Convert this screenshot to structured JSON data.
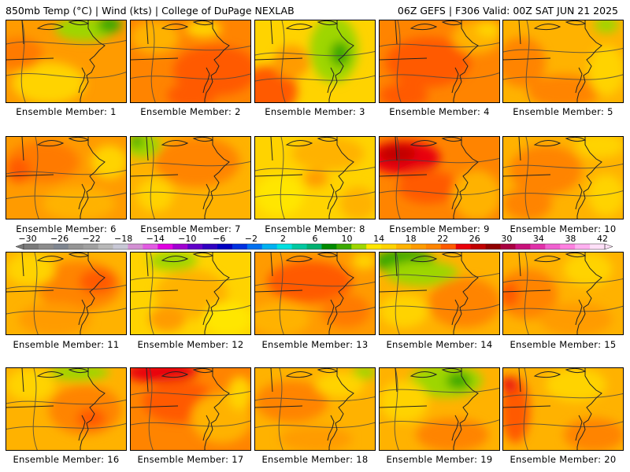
{
  "header": {
    "left": "850mb Temp (°C) | Wind (kts) | College of DuPage NEXLAB",
    "right": "06Z GEFS | F306 Valid: 00Z SAT JUN 21 2025"
  },
  "member_label_prefix": "Ensemble Member: ",
  "members": [
    {
      "id": "1",
      "base": "#ff9b00",
      "blobs": [
        [
          "#ffd300",
          0.35,
          0.75,
          0.3,
          0.25
        ],
        [
          "#9ed600",
          0.65,
          0.1,
          0.25,
          0.15
        ],
        [
          "#3aa800",
          0.85,
          0.05,
          0.1,
          0.1
        ],
        [
          "#ff7a00",
          0.1,
          0.4,
          0.2,
          0.2
        ]
      ]
    },
    {
      "id": "2",
      "base": "#ff8400",
      "blobs": [
        [
          "#ff5a00",
          0.7,
          0.6,
          0.35,
          0.3
        ],
        [
          "#ffb200",
          0.2,
          0.2,
          0.2,
          0.2
        ],
        [
          "#ffd300",
          0.6,
          0.1,
          0.15,
          0.1
        ],
        [
          "#ff5a00",
          0.5,
          0.9,
          0.2,
          0.15
        ]
      ]
    },
    {
      "id": "3",
      "base": "#ffd300",
      "blobs": [
        [
          "#ff5a00",
          0.1,
          0.85,
          0.25,
          0.3
        ],
        [
          "#9ed600",
          0.65,
          0.35,
          0.2,
          0.4
        ],
        [
          "#3aa800",
          0.7,
          0.4,
          0.08,
          0.15
        ],
        [
          "#ff9b00",
          0.3,
          0.5,
          0.15,
          0.2
        ]
      ]
    },
    {
      "id": "4",
      "base": "#ff8400",
      "blobs": [
        [
          "#ff5a00",
          0.4,
          0.5,
          0.35,
          0.3
        ],
        [
          "#ffb200",
          0.8,
          0.2,
          0.2,
          0.2
        ],
        [
          "#ffd300",
          0.9,
          0.1,
          0.1,
          0.1
        ],
        [
          "#ff5a00",
          0.2,
          0.9,
          0.2,
          0.15
        ]
      ]
    },
    {
      "id": "5",
      "base": "#ffb200",
      "blobs": [
        [
          "#ff8400",
          0.15,
          0.5,
          0.2,
          0.3
        ],
        [
          "#ff8400",
          0.5,
          0.85,
          0.3,
          0.2
        ],
        [
          "#ffd300",
          0.85,
          0.6,
          0.15,
          0.3
        ],
        [
          "#9ed600",
          0.85,
          0.05,
          0.1,
          0.1
        ]
      ]
    },
    {
      "id": "6",
      "base": "#ff9b00",
      "blobs": [
        [
          "#ff7a00",
          0.3,
          0.3,
          0.3,
          0.25
        ],
        [
          "#ffb200",
          0.6,
          0.8,
          0.3,
          0.2
        ],
        [
          "#ff5a00",
          0.1,
          0.4,
          0.1,
          0.15
        ],
        [
          "#ffd300",
          0.85,
          0.3,
          0.15,
          0.2
        ]
      ]
    },
    {
      "id": "7",
      "base": "#ffb200",
      "blobs": [
        [
          "#9ed600",
          0.1,
          0.1,
          0.15,
          0.15
        ],
        [
          "#3aa800",
          0.05,
          0.05,
          0.05,
          0.08
        ],
        [
          "#ff8400",
          0.55,
          0.3,
          0.35,
          0.3
        ],
        [
          "#ffd300",
          0.2,
          0.7,
          0.15,
          0.2
        ]
      ]
    },
    {
      "id": "8",
      "base": "#ffd300",
      "blobs": [
        [
          "#ffb200",
          0.6,
          0.2,
          0.3,
          0.2
        ],
        [
          "#ffe600",
          0.2,
          0.7,
          0.2,
          0.25
        ],
        [
          "#ffb200",
          0.85,
          0.8,
          0.15,
          0.2
        ],
        [
          "#ff9b00",
          0.5,
          0.5,
          0.1,
          0.1
        ]
      ]
    },
    {
      "id": "9",
      "base": "#ff8400",
      "blobs": [
        [
          "#e8000a",
          0.2,
          0.25,
          0.3,
          0.2
        ],
        [
          "#c00000",
          0.15,
          0.2,
          0.15,
          0.1
        ],
        [
          "#ff5a00",
          0.4,
          0.6,
          0.25,
          0.2
        ],
        [
          "#ffb200",
          0.8,
          0.7,
          0.2,
          0.3
        ]
      ]
    },
    {
      "id": "10",
      "base": "#ffb200",
      "blobs": [
        [
          "#ff8400",
          0.35,
          0.4,
          0.3,
          0.3
        ],
        [
          "#ffd300",
          0.8,
          0.1,
          0.2,
          0.15
        ],
        [
          "#ff8400",
          0.2,
          0.8,
          0.2,
          0.2
        ],
        [
          "#ffd300",
          0.85,
          0.7,
          0.15,
          0.25
        ]
      ]
    },
    {
      "id": "11",
      "base": "#ffb200",
      "blobs": [
        [
          "#ff8400",
          0.6,
          0.4,
          0.35,
          0.3
        ],
        [
          "#ff5a00",
          0.75,
          0.35,
          0.15,
          0.15
        ],
        [
          "#ffd300",
          0.2,
          0.2,
          0.2,
          0.2
        ],
        [
          "#ff9b00",
          0.4,
          0.8,
          0.3,
          0.2
        ]
      ]
    },
    {
      "id": "12",
      "base": "#ffd300",
      "blobs": [
        [
          "#ffb200",
          0.5,
          0.5,
          0.3,
          0.3
        ],
        [
          "#9ed600",
          0.35,
          0.1,
          0.2,
          0.12
        ],
        [
          "#ffe600",
          0.8,
          0.8,
          0.2,
          0.2
        ],
        [
          "#ff9b00",
          0.3,
          0.8,
          0.15,
          0.15
        ]
      ]
    },
    {
      "id": "13",
      "base": "#ff9b00",
      "blobs": [
        [
          "#ff5a00",
          0.45,
          0.35,
          0.35,
          0.25
        ],
        [
          "#ffb200",
          0.2,
          0.8,
          0.25,
          0.2
        ],
        [
          "#ff7a00",
          0.75,
          0.7,
          0.2,
          0.2
        ],
        [
          "#ffd300",
          0.9,
          0.1,
          0.1,
          0.1
        ]
      ]
    },
    {
      "id": "14",
      "base": "#ffb200",
      "blobs": [
        [
          "#3aa800",
          0.2,
          0.1,
          0.25,
          0.15
        ],
        [
          "#9ed600",
          0.35,
          0.25,
          0.3,
          0.15
        ],
        [
          "#ff8400",
          0.7,
          0.6,
          0.3,
          0.3
        ],
        [
          "#ffd300",
          0.2,
          0.7,
          0.2,
          0.2
        ]
      ]
    },
    {
      "id": "15",
      "base": "#ffb200",
      "blobs": [
        [
          "#ff8400",
          0.2,
          0.5,
          0.25,
          0.3
        ],
        [
          "#ff5a00",
          0.05,
          0.5,
          0.08,
          0.15
        ],
        [
          "#ff9b00",
          0.6,
          0.8,
          0.3,
          0.2
        ],
        [
          "#ffd300",
          0.7,
          0.2,
          0.2,
          0.2
        ]
      ]
    },
    {
      "id": "16",
      "base": "#ffb200",
      "blobs": [
        [
          "#ff8400",
          0.65,
          0.5,
          0.3,
          0.3
        ],
        [
          "#ff5a00",
          0.7,
          0.6,
          0.12,
          0.12
        ],
        [
          "#9ed600",
          0.6,
          0.05,
          0.25,
          0.1
        ],
        [
          "#ffd300",
          0.2,
          0.2,
          0.2,
          0.2
        ]
      ]
    },
    {
      "id": "17",
      "base": "#ff8400",
      "blobs": [
        [
          "#e8000a",
          0.25,
          0.05,
          0.3,
          0.12
        ],
        [
          "#ff5a00",
          0.4,
          0.4,
          0.3,
          0.25
        ],
        [
          "#ffb200",
          0.75,
          0.6,
          0.25,
          0.3
        ],
        [
          "#ffd300",
          0.9,
          0.3,
          0.1,
          0.2
        ]
      ]
    },
    {
      "id": "18",
      "base": "#ffb200",
      "blobs": [
        [
          "#ff8400",
          0.3,
          0.4,
          0.3,
          0.25
        ],
        [
          "#9ed600",
          0.9,
          0.05,
          0.1,
          0.08
        ],
        [
          "#ffd300",
          0.7,
          0.2,
          0.2,
          0.15
        ],
        [
          "#ff9b00",
          0.5,
          0.85,
          0.3,
          0.15
        ]
      ]
    },
    {
      "id": "19",
      "base": "#ffb200",
      "blobs": [
        [
          "#9ed600",
          0.55,
          0.15,
          0.3,
          0.2
        ],
        [
          "#3aa800",
          0.65,
          0.15,
          0.1,
          0.1
        ],
        [
          "#ffd300",
          0.2,
          0.4,
          0.2,
          0.25
        ],
        [
          "#ff8400",
          0.6,
          0.8,
          0.3,
          0.2
        ]
      ]
    },
    {
      "id": "20",
      "base": "#ffb200",
      "blobs": [
        [
          "#ff5a00",
          0.1,
          0.5,
          0.12,
          0.4
        ],
        [
          "#e8000a",
          0.05,
          0.2,
          0.06,
          0.1
        ],
        [
          "#ff8400",
          0.75,
          0.8,
          0.25,
          0.2
        ],
        [
          "#ffd300",
          0.6,
          0.2,
          0.25,
          0.2
        ]
      ]
    }
  ],
  "colorbar": {
    "labels": [
      "−30",
      "−26",
      "−22",
      "−18",
      "−14",
      "−10",
      "−6",
      "−2",
      "2",
      "6",
      "10",
      "14",
      "18",
      "22",
      "26",
      "30",
      "34",
      "38",
      "42"
    ],
    "colors": [
      "#7a7a7a",
      "#8c8c8c",
      "#7f8690",
      "#959595",
      "#a0a0a0",
      "#b8b8b8",
      "#c7c7d5",
      "#d390d3",
      "#e25ae2",
      "#e000e0",
      "#a000d0",
      "#6000c8",
      "#3000c0",
      "#0000c0",
      "#0030e0",
      "#0070f0",
      "#00b0f0",
      "#00e0e0",
      "#00c8a0",
      "#00b070",
      "#008a00",
      "#3aa800",
      "#9ed600",
      "#ffe600",
      "#ffd300",
      "#ffb200",
      "#ff9b00",
      "#ff8400",
      "#ff5a00",
      "#e8000a",
      "#c00000",
      "#900000",
      "#a80040",
      "#c8107a",
      "#e030a8",
      "#f060d0",
      "#ff80e0",
      "#ffb0f0",
      "#ffe0f8"
    ]
  }
}
